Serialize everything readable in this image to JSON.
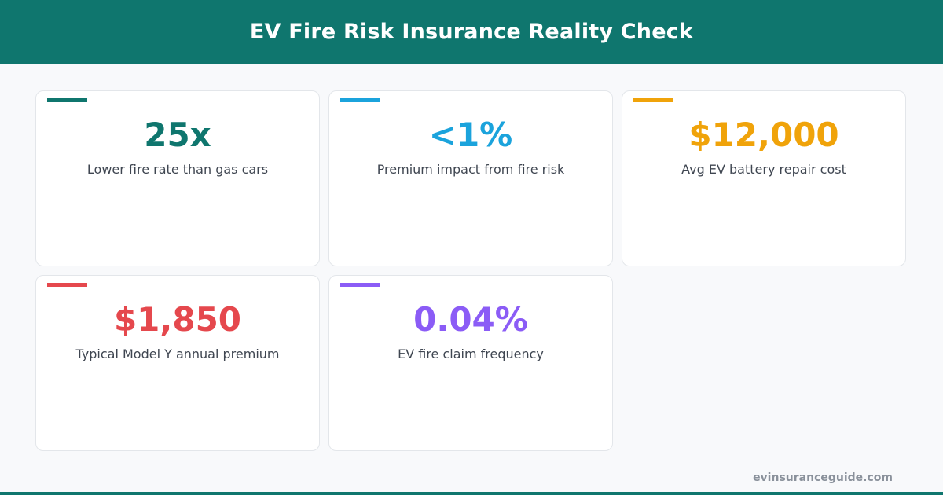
{
  "header": {
    "title": "EV Fire Risk Insurance Reality Check"
  },
  "colors": {
    "brand": "#0f766e",
    "teal": "#0f766e",
    "blue": "#1ba3dc",
    "orange": "#f0a30a",
    "red": "#e5484d",
    "purple": "#8b5cf6"
  },
  "stats": [
    {
      "value": "25x",
      "label": "Lower fire rate than gas cars",
      "color": "#0f766e"
    },
    {
      "value": "<1%",
      "label": "Premium impact from fire risk",
      "color": "#1ba3dc"
    },
    {
      "value": "$12,000",
      "label": "Avg EV battery repair cost",
      "color": "#f0a30a"
    },
    {
      "value": "$1,850",
      "label": "Typical Model Y annual premium",
      "color": "#e5484d"
    },
    {
      "value": "0.04%",
      "label": "EV fire claim frequency",
      "color": "#8b5cf6"
    }
  ],
  "footer": {
    "site": "evinsuranceguide.com"
  }
}
